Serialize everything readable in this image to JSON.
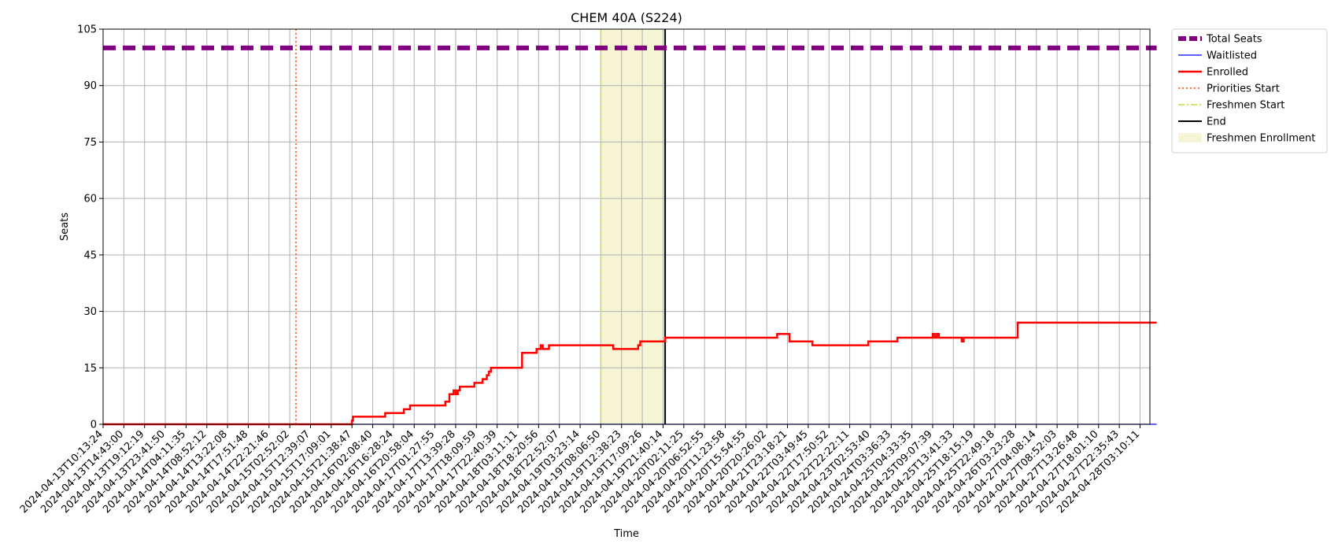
{
  "chart_data": {
    "type": "line",
    "title": "CHEM 40A (S224)",
    "xlabel": "Time",
    "ylabel": "Seats",
    "ylim": [
      0,
      105
    ],
    "yticks": [
      0,
      15,
      30,
      45,
      60,
      75,
      90,
      105
    ],
    "grid": true,
    "legend_position": "outside top-right",
    "x_tick_labels": [
      "2024-04-13T10:13:24",
      "2024-04-13T14:43:00",
      "2024-04-13T19:12:19",
      "2024-04-13T23:41:50",
      "2024-04-14T04:11:35",
      "2024-04-14T08:52:12",
      "2024-04-14T13:22:08",
      "2024-04-14T17:51:48",
      "2024-04-14T22:21:46",
      "2024-04-15T02:52:02",
      "2024-04-15T12:39:07",
      "2024-04-15T17:09:01",
      "2024-04-15T21:38:47",
      "2024-04-16T02:08:40",
      "2024-04-16T16:28:24",
      "2024-04-16T20:58:04",
      "2024-04-17T01:27:55",
      "2024-04-17T13:39:28",
      "2024-04-17T18:09:59",
      "2024-04-17T22:40:39",
      "2024-04-18T03:11:11",
      "2024-04-18T18:20:56",
      "2024-04-18T22:52:07",
      "2024-04-19T03:23:14",
      "2024-04-19T08:06:50",
      "2024-04-19T12:38:23",
      "2024-04-19T17:09:26",
      "2024-04-19T21:40:14",
      "2024-04-20T02:11:25",
      "2024-04-20T06:52:55",
      "2024-04-20T11:23:58",
      "2024-04-20T15:54:55",
      "2024-04-20T20:26:02",
      "2024-04-21T23:18:21",
      "2024-04-22T03:49:45",
      "2024-04-22T17:50:52",
      "2024-04-22T22:22:11",
      "2024-04-23T02:53:40",
      "2024-04-24T03:36:33",
      "2024-04-25T04:33:35",
      "2024-04-25T09:07:39",
      "2024-04-25T13:41:33",
      "2024-04-25T18:15:19",
      "2024-04-25T22:49:18",
      "2024-04-26T03:23:28",
      "2024-04-27T04:08:14",
      "2024-04-27T08:52:03",
      "2024-04-27T13:26:48",
      "2024-04-27T18:01:10",
      "2024-04-27T22:35:43",
      "2024-04-28T03:10:11"
    ],
    "series": [
      {
        "name": "Total Seats",
        "style": "dashed",
        "color": "#800080",
        "points": [
          [
            0,
            100
          ],
          [
            50.8,
            100
          ]
        ]
      },
      {
        "name": "Waitlisted",
        "style": "solid",
        "color": "#0000ff",
        "points": [
          [
            0,
            0
          ],
          [
            50.8,
            0
          ]
        ]
      },
      {
        "name": "Enrolled",
        "style": "solid",
        "color": "#ff0000",
        "points": [
          [
            0,
            0
          ],
          [
            12.0,
            0
          ],
          [
            12.0,
            1
          ],
          [
            12.05,
            1
          ],
          [
            12.05,
            2
          ],
          [
            13.6,
            2
          ],
          [
            13.6,
            3
          ],
          [
            14.5,
            3
          ],
          [
            14.5,
            4
          ],
          [
            14.8,
            4
          ],
          [
            14.8,
            5
          ],
          [
            16.5,
            5
          ],
          [
            16.5,
            6
          ],
          [
            16.7,
            6
          ],
          [
            16.7,
            8
          ],
          [
            16.9,
            8
          ],
          [
            16.9,
            9
          ],
          [
            17.0,
            9
          ],
          [
            17.0,
            8
          ],
          [
            17.1,
            8
          ],
          [
            17.1,
            9
          ],
          [
            17.2,
            9
          ],
          [
            17.2,
            10
          ],
          [
            17.9,
            10
          ],
          [
            17.9,
            11
          ],
          [
            18.3,
            11
          ],
          [
            18.3,
            12
          ],
          [
            18.5,
            12
          ],
          [
            18.5,
            13
          ],
          [
            18.6,
            13
          ],
          [
            18.6,
            14
          ],
          [
            18.7,
            14
          ],
          [
            18.7,
            15
          ],
          [
            20.2,
            15
          ],
          [
            20.2,
            19
          ],
          [
            20.9,
            19
          ],
          [
            20.9,
            20
          ],
          [
            21.1,
            20
          ],
          [
            21.1,
            21
          ],
          [
            21.2,
            21
          ],
          [
            21.2,
            20
          ],
          [
            21.5,
            20
          ],
          [
            21.5,
            21
          ],
          [
            24.6,
            21
          ],
          [
            24.6,
            20
          ],
          [
            25.8,
            20
          ],
          [
            25.8,
            21
          ],
          [
            25.9,
            21
          ],
          [
            25.9,
            22
          ],
          [
            27.1,
            22
          ],
          [
            27.1,
            23
          ],
          [
            32.5,
            23
          ],
          [
            32.5,
            24
          ],
          [
            33.1,
            24
          ],
          [
            33.1,
            22
          ],
          [
            34.2,
            22
          ],
          [
            34.2,
            21
          ],
          [
            36.9,
            21
          ],
          [
            36.9,
            22
          ],
          [
            38.3,
            22
          ],
          [
            38.3,
            23
          ],
          [
            40.0,
            23
          ],
          [
            40.0,
            24
          ],
          [
            40.1,
            24
          ],
          [
            40.1,
            23
          ],
          [
            40.2,
            23
          ],
          [
            40.2,
            24
          ],
          [
            40.3,
            24
          ],
          [
            40.3,
            23
          ],
          [
            41.4,
            23
          ],
          [
            41.4,
            22
          ],
          [
            41.5,
            22
          ],
          [
            41.5,
            23
          ],
          [
            44.1,
            23
          ],
          [
            44.1,
            27
          ],
          [
            50.8,
            27
          ]
        ]
      }
    ],
    "vertical_lines": [
      {
        "name": "Priorities Start",
        "x": 9.3,
        "style": "dotted",
        "color": "#ff4500"
      },
      {
        "name": "Freshmen Start",
        "x": 24.0,
        "style": "dashdot",
        "color": "#cddc39"
      },
      {
        "name": "End",
        "x": 27.1,
        "style": "solid",
        "color": "#000000"
      }
    ],
    "shaded_regions": [
      {
        "name": "Freshmen Enrollment",
        "x_start": 24.0,
        "x_end": 27.1,
        "color": "#f5f5d5"
      }
    ]
  }
}
